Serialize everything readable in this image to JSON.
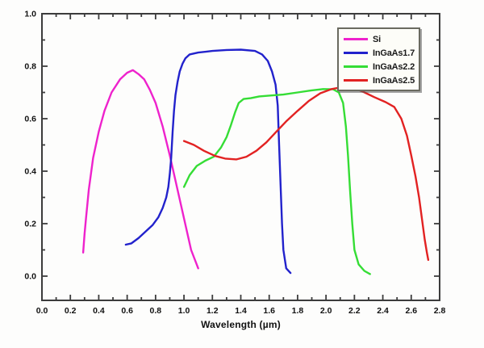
{
  "figure": {
    "background": "#fdfdfc",
    "axis_color": "#3c3c3c",
    "text_color": "#111111"
  },
  "xaxis": {
    "title": "Wavelength (µm)",
    "min": 0.0,
    "max": 2.8,
    "major_step": 0.2,
    "minor_step": 0.1,
    "tick_labels": [
      "0.0",
      "0.2",
      "0.4",
      "0.6",
      "0.8",
      "1.0",
      "1.2",
      "1.4",
      "1.6",
      "1.8",
      "2.0",
      "2.2",
      "2.4",
      "2.6",
      "2.8"
    ]
  },
  "yaxis": {
    "min": -0.092,
    "max": 1.0,
    "major_step": 0.2,
    "minor_step": 0.1,
    "tick_labels": [
      "0.0",
      "0.2",
      "0.4",
      "0.6",
      "0.8",
      "1.0"
    ]
  },
  "legend": {
    "position": "top-right"
  },
  "chart_data": {
    "type": "line",
    "title": "",
    "xlabel": "Wavelength (µm)",
    "ylabel": "",
    "xlim": [
      0.0,
      2.8
    ],
    "ylim": [
      -0.092,
      1.0
    ],
    "grid": false,
    "legend_position": "top-right",
    "series": [
      {
        "name": "Si",
        "color": "#ee22cc",
        "points": [
          [
            0.29,
            0.09
          ],
          [
            0.3,
            0.16
          ],
          [
            0.31,
            0.22
          ],
          [
            0.33,
            0.33
          ],
          [
            0.36,
            0.45
          ],
          [
            0.4,
            0.55
          ],
          [
            0.44,
            0.63
          ],
          [
            0.49,
            0.7
          ],
          [
            0.55,
            0.75
          ],
          [
            0.6,
            0.775
          ],
          [
            0.64,
            0.785
          ],
          [
            0.68,
            0.77
          ],
          [
            0.72,
            0.75
          ],
          [
            0.76,
            0.71
          ],
          [
            0.8,
            0.66
          ],
          [
            0.85,
            0.57
          ],
          [
            0.9,
            0.46
          ],
          [
            0.95,
            0.34
          ],
          [
            1.0,
            0.22
          ],
          [
            1.05,
            0.1
          ],
          [
            1.1,
            0.03
          ]
        ]
      },
      {
        "name": "InGaAs1.7",
        "color": "#2222cc",
        "points": [
          [
            0.59,
            0.12
          ],
          [
            0.63,
            0.125
          ],
          [
            0.68,
            0.145
          ],
          [
            0.73,
            0.17
          ],
          [
            0.78,
            0.195
          ],
          [
            0.82,
            0.225
          ],
          [
            0.85,
            0.26
          ],
          [
            0.875,
            0.3
          ],
          [
            0.89,
            0.34
          ],
          [
            0.9,
            0.39
          ],
          [
            0.91,
            0.45
          ],
          [
            0.92,
            0.55
          ],
          [
            0.93,
            0.63
          ],
          [
            0.94,
            0.69
          ],
          [
            0.955,
            0.74
          ],
          [
            0.97,
            0.78
          ],
          [
            0.99,
            0.81
          ],
          [
            1.01,
            0.83
          ],
          [
            1.04,
            0.845
          ],
          [
            1.1,
            0.852
          ],
          [
            1.2,
            0.858
          ],
          [
            1.3,
            0.862
          ],
          [
            1.4,
            0.863
          ],
          [
            1.5,
            0.858
          ],
          [
            1.55,
            0.845
          ],
          [
            1.59,
            0.82
          ],
          [
            1.62,
            0.78
          ],
          [
            1.645,
            0.73
          ],
          [
            1.66,
            0.65
          ],
          [
            1.67,
            0.5
          ],
          [
            1.68,
            0.35
          ],
          [
            1.69,
            0.2
          ],
          [
            1.7,
            0.1
          ],
          [
            1.72,
            0.03
          ],
          [
            1.75,
            0.012
          ]
        ]
      },
      {
        "name": "InGaAs2.2",
        "color": "#35dd35",
        "points": [
          [
            1.0,
            0.34
          ],
          [
            1.04,
            0.385
          ],
          [
            1.09,
            0.42
          ],
          [
            1.15,
            0.44
          ],
          [
            1.21,
            0.455
          ],
          [
            1.26,
            0.49
          ],
          [
            1.3,
            0.53
          ],
          [
            1.33,
            0.575
          ],
          [
            1.36,
            0.625
          ],
          [
            1.385,
            0.66
          ],
          [
            1.42,
            0.675
          ],
          [
            1.47,
            0.678
          ],
          [
            1.53,
            0.685
          ],
          [
            1.6,
            0.688
          ],
          [
            1.7,
            0.692
          ],
          [
            1.8,
            0.7
          ],
          [
            1.9,
            0.708
          ],
          [
            1.98,
            0.713
          ],
          [
            2.05,
            0.712
          ],
          [
            2.09,
            0.7
          ],
          [
            2.12,
            0.66
          ],
          [
            2.14,
            0.57
          ],
          [
            2.155,
            0.46
          ],
          [
            2.17,
            0.32
          ],
          [
            2.185,
            0.2
          ],
          [
            2.2,
            0.1
          ],
          [
            2.23,
            0.045
          ],
          [
            2.27,
            0.02
          ],
          [
            2.31,
            0.008
          ]
        ]
      },
      {
        "name": "InGaAs2.5",
        "color": "#e22222",
        "points": [
          [
            1.0,
            0.515
          ],
          [
            1.07,
            0.5
          ],
          [
            1.14,
            0.478
          ],
          [
            1.22,
            0.458
          ],
          [
            1.29,
            0.448
          ],
          [
            1.37,
            0.445
          ],
          [
            1.44,
            0.455
          ],
          [
            1.51,
            0.478
          ],
          [
            1.58,
            0.51
          ],
          [
            1.65,
            0.55
          ],
          [
            1.72,
            0.59
          ],
          [
            1.8,
            0.63
          ],
          [
            1.88,
            0.668
          ],
          [
            1.96,
            0.697
          ],
          [
            2.04,
            0.713
          ],
          [
            2.11,
            0.72
          ],
          [
            2.18,
            0.72
          ],
          [
            2.26,
            0.703
          ],
          [
            2.34,
            0.682
          ],
          [
            2.42,
            0.663
          ],
          [
            2.48,
            0.645
          ],
          [
            2.53,
            0.6
          ],
          [
            2.57,
            0.535
          ],
          [
            2.6,
            0.46
          ],
          [
            2.63,
            0.38
          ],
          [
            2.655,
            0.3
          ],
          [
            2.675,
            0.22
          ],
          [
            2.695,
            0.14
          ],
          [
            2.71,
            0.09
          ],
          [
            2.72,
            0.062
          ]
        ]
      }
    ]
  }
}
